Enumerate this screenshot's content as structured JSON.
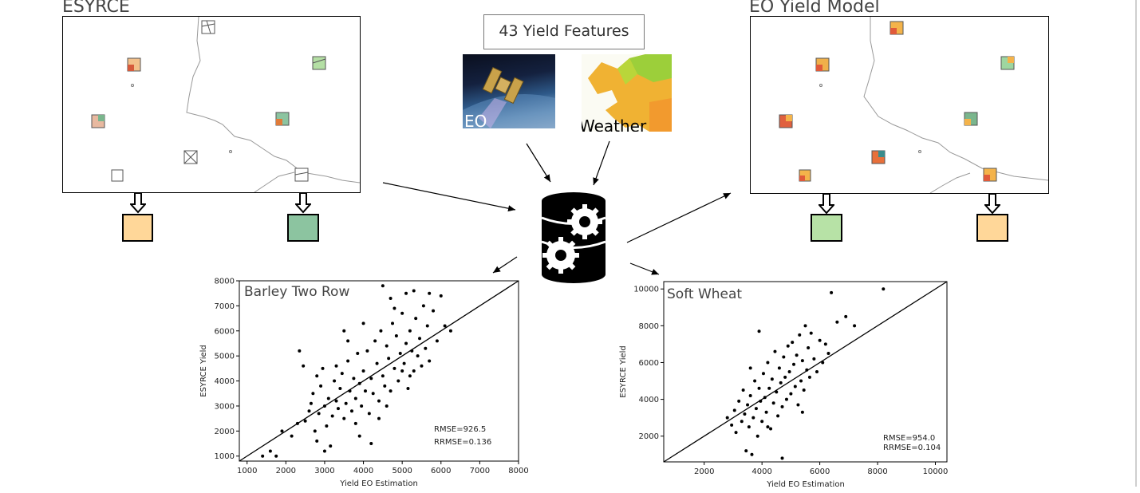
{
  "left_map": {
    "title": "ESYRCE"
  },
  "right_map": {
    "title": "EO Yield Model"
  },
  "features": {
    "label": "43 Yield Features"
  },
  "sources": {
    "eo_label": "EO",
    "weather_label": "Weather"
  },
  "icons": {
    "database": "database-gears-icon",
    "arrow": "hollow-down-arrow-icon",
    "satellite": "satellite-icon"
  },
  "colors": {
    "swatch_orange": "#FFD799",
    "swatch_green_dark": "#8CC4A0",
    "swatch_green_light": "#B7E2A6",
    "point": "#000000"
  },
  "chart_data": [
    {
      "type": "scatter",
      "title": "Barley Two Row",
      "xlabel": "Yield EO Estimation",
      "ylabel": "ESYRCE Yield",
      "xlim": [
        800,
        8000
      ],
      "ylim": [
        800,
        8000
      ],
      "xticks": [
        "1000",
        "2000",
        "3000",
        "4000",
        "5000",
        "6000",
        "7000",
        "8000"
      ],
      "yticks": [
        "1000",
        "2000",
        "3000",
        "4000",
        "5000",
        "6000",
        "7000",
        "8000"
      ],
      "annotation": [
        "RMSE=926.5",
        "RRMSE=0.136"
      ],
      "reference_line": "y=x",
      "points": [
        [
          1400,
          1000
        ],
        [
          1600,
          1200
        ],
        [
          1750,
          1000
        ],
        [
          1900,
          2000
        ],
        [
          2150,
          1800
        ],
        [
          2300,
          2300
        ],
        [
          2350,
          5200
        ],
        [
          2450,
          4600
        ],
        [
          2500,
          2400
        ],
        [
          2600,
          2800
        ],
        [
          2650,
          3100
        ],
        [
          2700,
          3500
        ],
        [
          2750,
          2000
        ],
        [
          2800,
          1600
        ],
        [
          2850,
          2700
        ],
        [
          2900,
          3800
        ],
        [
          2950,
          4500
        ],
        [
          3000,
          3000
        ],
        [
          3050,
          2200
        ],
        [
          3100,
          3300
        ],
        [
          3150,
          1400
        ],
        [
          3200,
          2600
        ],
        [
          3250,
          4000
        ],
        [
          3300,
          3200
        ],
        [
          3350,
          2900
        ],
        [
          3400,
          3700
        ],
        [
          3450,
          4300
        ],
        [
          3500,
          2500
        ],
        [
          3550,
          3100
        ],
        [
          3600,
          4800
        ],
        [
          3650,
          3600
        ],
        [
          3700,
          2800
        ],
        [
          3750,
          4100
        ],
        [
          3800,
          3300
        ],
        [
          3850,
          5100
        ],
        [
          3900,
          3900
        ],
        [
          3950,
          3000
        ],
        [
          4000,
          4400
        ],
        [
          4050,
          3600
        ],
        [
          4100,
          5200
        ],
        [
          4150,
          2700
        ],
        [
          4200,
          4100
        ],
        [
          4250,
          3500
        ],
        [
          4300,
          5600
        ],
        [
          4350,
          4700
        ],
        [
          4400,
          3200
        ],
        [
          4450,
          6000
        ],
        [
          4500,
          4200
        ],
        [
          4550,
          3800
        ],
        [
          4600,
          5400
        ],
        [
          4650,
          4900
        ],
        [
          4700,
          3600
        ],
        [
          4750,
          6300
        ],
        [
          4800,
          4500
        ],
        [
          4850,
          5800
        ],
        [
          4900,
          4000
        ],
        [
          4950,
          5100
        ],
        [
          5000,
          6700
        ],
        [
          5050,
          4700
        ],
        [
          5100,
          5500
        ],
        [
          5150,
          3700
        ],
        [
          5200,
          6000
        ],
        [
          5250,
          5200
        ],
        [
          5300,
          4400
        ],
        [
          5350,
          6500
        ],
        [
          5400,
          5000
        ],
        [
          5450,
          5700
        ],
        [
          5500,
          4600
        ],
        [
          5550,
          7000
        ],
        [
          5600,
          5300
        ],
        [
          5650,
          6200
        ],
        [
          5700,
          4800
        ],
        [
          5800,
          6800
        ],
        [
          5900,
          5600
        ],
        [
          6000,
          7400
        ],
        [
          6100,
          6200
        ],
        [
          6250,
          6000
        ],
        [
          4500,
          7800
        ],
        [
          4700,
          7300
        ],
        [
          5100,
          7500
        ],
        [
          5300,
          7600
        ],
        [
          5700,
          7500
        ],
        [
          4200,
          1500
        ],
        [
          3000,
          1200
        ],
        [
          3500,
          6000
        ],
        [
          3300,
          4600
        ],
        [
          4000,
          6300
        ],
        [
          3800,
          2300
        ],
        [
          5000,
          4400
        ],
        [
          4600,
          3000
        ],
        [
          3900,
          1800
        ],
        [
          4400,
          2500
        ],
        [
          2800,
          4200
        ],
        [
          3600,
          5600
        ],
        [
          4800,
          6900
        ],
        [
          5200,
          4200
        ]
      ]
    },
    {
      "type": "scatter",
      "title": "Soft Wheat",
      "xlabel": "Yield EO Estimation",
      "ylabel": "ESYRCE Yield",
      "xlim": [
        600,
        10400
      ],
      "ylim": [
        600,
        10400
      ],
      "xticks": [
        "2000",
        "4000",
        "6000",
        "8000",
        "10000"
      ],
      "yticks": [
        "2000",
        "4000",
        "6000",
        "8000",
        "10000"
      ],
      "annotation": [
        "RMSE=954.0",
        "RRMSE=0.104"
      ],
      "reference_line": "y=x",
      "points": [
        [
          2800,
          3000
        ],
        [
          2950,
          2600
        ],
        [
          3050,
          3400
        ],
        [
          3100,
          2200
        ],
        [
          3200,
          3900
        ],
        [
          3300,
          2800
        ],
        [
          3350,
          4500
        ],
        [
          3400,
          3200
        ],
        [
          3450,
          1200
        ],
        [
          3500,
          3700
        ],
        [
          3550,
          2500
        ],
        [
          3600,
          4200
        ],
        [
          3650,
          1000
        ],
        [
          3700,
          3000
        ],
        [
          3750,
          5000
        ],
        [
          3800,
          3500
        ],
        [
          3850,
          2000
        ],
        [
          3900,
          4600
        ],
        [
          3950,
          3900
        ],
        [
          4000,
          2800
        ],
        [
          4050,
          5400
        ],
        [
          4100,
          4100
        ],
        [
          4150,
          3300
        ],
        [
          4200,
          6000
        ],
        [
          4250,
          4600
        ],
        [
          4300,
          2400
        ],
        [
          4350,
          5100
        ],
        [
          4400,
          3800
        ],
        [
          4450,
          6600
        ],
        [
          4500,
          4400
        ],
        [
          4550,
          3100
        ],
        [
          4600,
          5700
        ],
        [
          4650,
          4900
        ],
        [
          4700,
          3600
        ],
        [
          4750,
          6300
        ],
        [
          4800,
          5200
        ],
        [
          4850,
          4000
        ],
        [
          4900,
          6900
        ],
        [
          4950,
          5500
        ],
        [
          5000,
          4300
        ],
        [
          5050,
          7100
        ],
        [
          5100,
          5900
        ],
        [
          5150,
          4700
        ],
        [
          5200,
          6400
        ],
        [
          5250,
          3700
        ],
        [
          5300,
          7500
        ],
        [
          5350,
          5000
        ],
        [
          5400,
          6100
        ],
        [
          5450,
          4500
        ],
        [
          5500,
          8000
        ],
        [
          5550,
          5600
        ],
        [
          5600,
          6800
        ],
        [
          5650,
          5200
        ],
        [
          5700,
          7600
        ],
        [
          5800,
          6200
        ],
        [
          5900,
          5500
        ],
        [
          6000,
          7200
        ],
        [
          6100,
          6000
        ],
        [
          6200,
          7000
        ],
        [
          6300,
          6500
        ],
        [
          6600,
          8200
        ],
        [
          6900,
          8500
        ],
        [
          7200,
          8000
        ],
        [
          8200,
          10000
        ],
        [
          6400,
          9800
        ],
        [
          4700,
          800
        ],
        [
          3900,
          7700
        ],
        [
          4200,
          2500
        ],
        [
          5400,
          3300
        ],
        [
          3600,
          5700
        ]
      ]
    }
  ]
}
